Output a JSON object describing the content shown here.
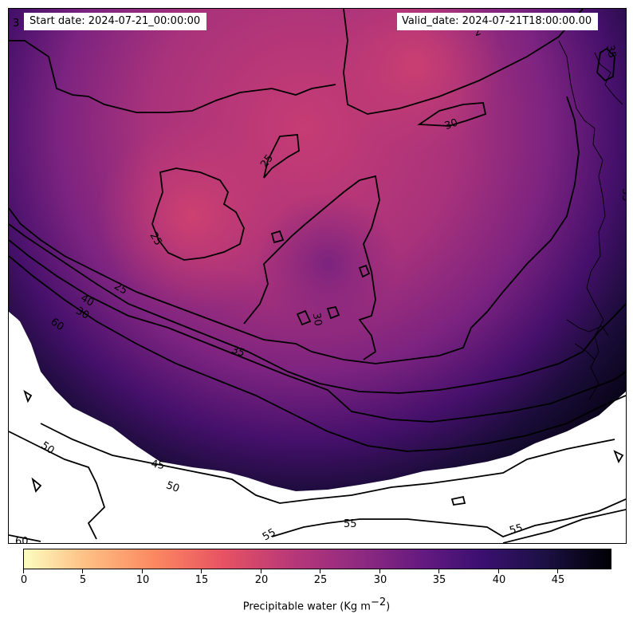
{
  "header": {
    "start_label": "Start date: 2024-07-21_00:00:00",
    "valid_label": "Valid_date: 2024-07-21T18:00:00.00"
  },
  "map": {
    "field": "Precipitable water",
    "colormap": "magma_r",
    "contour_color": "#000000",
    "missing_color": "#ffffff",
    "contour_labels": [
      "25",
      "25",
      "25",
      "30",
      "30",
      "30",
      "35",
      "35",
      "40",
      "45",
      "50",
      "50",
      "55",
      "55",
      "55",
      "60",
      "60",
      "2",
      "3",
      "35"
    ]
  },
  "colorbar": {
    "label_text": "Precipitable water (Kg m",
    "label_exp": "−2",
    "label_close": ")",
    "min": 0,
    "max": 49.5,
    "ticks": [
      "0",
      "5",
      "10",
      "15",
      "20",
      "25",
      "30",
      "35",
      "40",
      "45"
    ],
    "colors": [
      "#fcfdbf",
      "#fec287",
      "#fc8961",
      "#e75263",
      "#b73779",
      "#8c2981",
      "#641a80",
      "#3b0f70",
      "#1d1147",
      "#000004"
    ]
  }
}
